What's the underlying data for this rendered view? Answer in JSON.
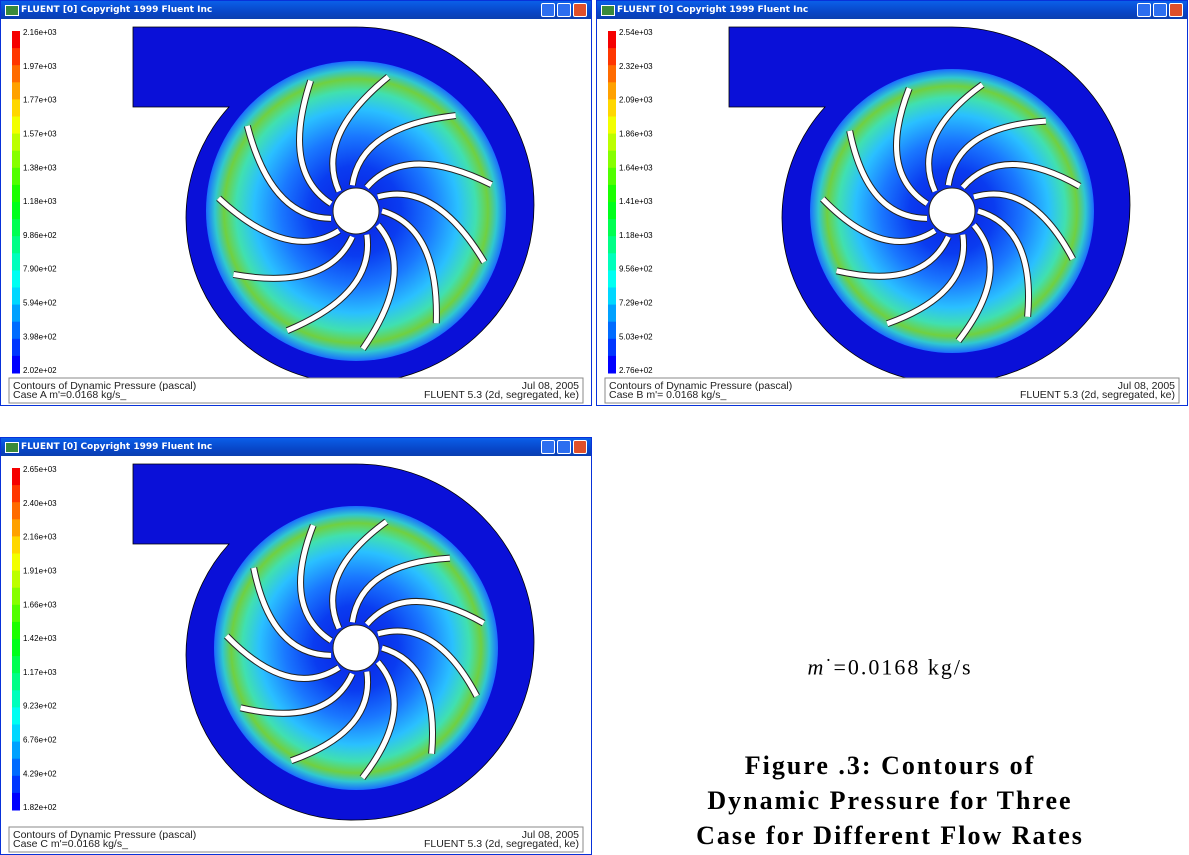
{
  "windows": [
    {
      "title": "FLUENT [0] Copyright 1999 Fluent Inc",
      "colorbar": [
        "2.16e+03",
        "1.97e+03",
        "1.77e+03",
        "1.57e+03",
        "1.38e+03",
        "1.18e+03",
        "9.86e+02",
        "7.90e+02",
        "5.94e+02",
        "3.98e+02",
        "2.02e+02"
      ],
      "footer_left": [
        "Contours of Dynamic Pressure (pascal)",
        "Case A   m'=0.0168 kg/s_"
      ],
      "footer_right": [
        "Jul 08, 2005",
        "FLUENT 5.3 (2d, segregated, ke)"
      ]
    },
    {
      "title": "FLUENT [0] Copyright 1999 Fluent Inc",
      "colorbar": [
        "2.54e+03",
        "2.32e+03",
        "2.09e+03",
        "1.86e+03",
        "1.64e+03",
        "1.41e+03",
        "1.18e+03",
        "9.56e+02",
        "7.29e+02",
        "5.03e+02",
        "2.76e+02"
      ],
      "footer_left": [
        "Contours of Dynamic Pressure (pascal)",
        "Case B   m'= 0.0168 kg/s_"
      ],
      "footer_right": [
        "Jul 08, 2005",
        "FLUENT 5.3 (2d, segregated, ke)"
      ]
    },
    {
      "title": "FLUENT [0] Copyright 1999 Fluent Inc",
      "colorbar": [
        "2.65e+03",
        "2.40e+03",
        "2.16e+03",
        "1.91e+03",
        "1.66e+03",
        "1.42e+03",
        "1.17e+03",
        "9.23e+02",
        "6.76e+02",
        "4.29e+02",
        "1.82e+02"
      ],
      "footer_left": [
        "Contours of Dynamic Pressure (pascal)",
        "Case C   m'=0.0168 kg/s_"
      ],
      "footer_right": [
        "Jul 08, 2005",
        "FLUENT 5.3 (2d, segregated, ke)"
      ]
    }
  ],
  "caption": {
    "symbol": "m",
    "accent": "·",
    "value": "=0.0168 kg/s",
    "lines": [
      "Figure .3: Contours of",
      "Dynamic Pressure for Three",
      "Case for Different Flow Rates"
    ]
  }
}
